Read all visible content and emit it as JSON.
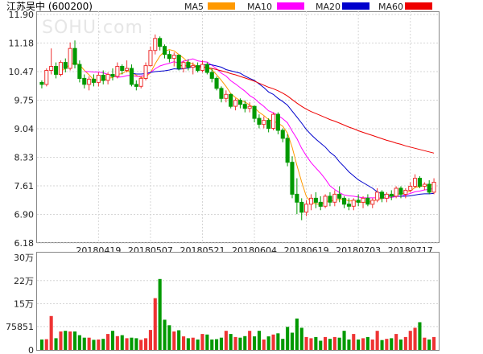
{
  "chart_data": [
    {
      "type": "candlestick",
      "title": "江苏吴中 (600200)",
      "watermark": "SOHU.com",
      "ylim": [
        6.18,
        11.9
      ],
      "y_ticks": [
        "11.90",
        "11.18",
        "10.47",
        "9.75",
        "9.04",
        "8.33",
        "7.61",
        "6.90",
        "6.18"
      ],
      "x_ticks": [
        {
          "label": "20180419",
          "index": 12
        },
        {
          "label": "20180507",
          "index": 23
        },
        {
          "label": "20180521",
          "index": 34
        },
        {
          "label": "20180604",
          "index": 45
        },
        {
          "label": "20180619",
          "index": 56
        },
        {
          "label": "20180703",
          "index": 67
        },
        {
          "label": "20180717",
          "index": 78
        }
      ],
      "legend": [
        {
          "name": "MA5",
          "color": "#ff9900"
        },
        {
          "name": "MA10",
          "color": "#ff00ff"
        },
        {
          "name": "MA20",
          "color": "#0000cc"
        },
        {
          "name": "MA60",
          "color": "#ee0000"
        }
      ],
      "colors": {
        "up": "#ee3333",
        "down": "#009900"
      },
      "ohlc": [
        [
          10.2,
          10.25,
          10.05,
          10.15
        ],
        [
          10.15,
          10.55,
          10.1,
          10.5
        ],
        [
          10.5,
          11.05,
          10.4,
          10.6
        ],
        [
          10.6,
          10.7,
          10.3,
          10.4
        ],
        [
          10.4,
          10.75,
          10.35,
          10.7
        ],
        [
          10.7,
          10.8,
          10.45,
          10.55
        ],
        [
          10.55,
          11.2,
          10.5,
          11.05
        ],
        [
          11.05,
          11.25,
          10.55,
          10.65
        ],
        [
          10.65,
          10.75,
          10.2,
          10.3
        ],
        [
          10.3,
          10.4,
          10.05,
          10.15
        ],
        [
          10.15,
          10.35,
          10.0,
          10.28
        ],
        [
          10.28,
          10.4,
          10.1,
          10.2
        ],
        [
          10.2,
          10.45,
          10.1,
          10.38
        ],
        [
          10.38,
          10.5,
          10.15,
          10.25
        ],
        [
          10.25,
          10.45,
          10.15,
          10.4
        ],
        [
          10.4,
          10.55,
          10.25,
          10.35
        ],
        [
          10.35,
          10.7,
          10.3,
          10.6
        ],
        [
          10.6,
          10.65,
          10.4,
          10.5
        ],
        [
          10.5,
          10.75,
          10.45,
          10.55
        ],
        [
          10.55,
          10.65,
          10.1,
          10.15
        ],
        [
          10.15,
          10.25,
          10.0,
          10.1
        ],
        [
          10.1,
          10.35,
          10.05,
          10.3
        ],
        [
          10.3,
          10.7,
          10.25,
          10.62
        ],
        [
          10.62,
          11.1,
          10.6,
          11.0
        ],
        [
          11.0,
          11.4,
          10.9,
          11.3
        ],
        [
          11.3,
          11.35,
          11.0,
          11.1
        ],
        [
          11.1,
          11.15,
          10.8,
          10.9
        ],
        [
          10.9,
          11.0,
          10.7,
          10.8
        ],
        [
          10.8,
          10.95,
          10.6,
          10.88
        ],
        [
          10.88,
          10.9,
          10.5,
          10.55
        ],
        [
          10.55,
          10.75,
          10.45,
          10.7
        ],
        [
          10.7,
          10.78,
          10.5,
          10.58
        ],
        [
          10.58,
          10.7,
          10.4,
          10.62
        ],
        [
          10.62,
          10.7,
          10.45,
          10.5
        ],
        [
          10.5,
          10.75,
          10.45,
          10.65
        ],
        [
          10.65,
          10.7,
          10.4,
          10.45
        ],
        [
          10.45,
          10.55,
          10.2,
          10.3
        ],
        [
          10.3,
          10.35,
          10.0,
          10.05
        ],
        [
          10.05,
          10.1,
          9.7,
          9.8
        ],
        [
          9.8,
          10.0,
          9.7,
          9.9
        ],
        [
          9.9,
          9.92,
          9.55,
          9.6
        ],
        [
          9.6,
          9.8,
          9.5,
          9.75
        ],
        [
          9.75,
          9.8,
          9.55,
          9.65
        ],
        [
          9.65,
          9.75,
          9.45,
          9.55
        ],
        [
          9.55,
          9.7,
          9.45,
          9.6
        ],
        [
          9.6,
          9.62,
          9.2,
          9.3
        ],
        [
          9.3,
          9.4,
          9.05,
          9.15
        ],
        [
          9.15,
          9.35,
          9.05,
          9.25
        ],
        [
          9.25,
          9.3,
          8.95,
          9.05
        ],
        [
          9.05,
          9.45,
          9.0,
          9.4
        ],
        [
          9.4,
          9.45,
          8.9,
          9.0
        ],
        [
          9.0,
          9.05,
          8.7,
          8.8
        ],
        [
          8.8,
          8.9,
          8.1,
          8.2
        ],
        [
          8.2,
          8.35,
          7.3,
          7.4
        ],
        [
          7.4,
          7.8,
          6.9,
          7.2
        ],
        [
          7.2,
          7.3,
          6.75,
          6.95
        ],
        [
          6.95,
          7.25,
          6.85,
          7.15
        ],
        [
          7.15,
          7.4,
          7.0,
          7.3
        ],
        [
          7.3,
          7.45,
          7.05,
          7.2
        ],
        [
          7.2,
          7.35,
          7.0,
          7.1
        ],
        [
          7.1,
          7.4,
          7.05,
          7.35
        ],
        [
          7.35,
          7.45,
          7.1,
          7.2
        ],
        [
          7.2,
          7.5,
          7.1,
          7.4
        ],
        [
          7.4,
          7.6,
          7.2,
          7.3
        ],
        [
          7.3,
          7.35,
          7.05,
          7.15
        ],
        [
          7.15,
          7.3,
          7.0,
          7.1
        ],
        [
          7.1,
          7.3,
          7.0,
          7.25
        ],
        [
          7.25,
          7.4,
          7.1,
          7.2
        ],
        [
          7.2,
          7.35,
          7.05,
          7.3
        ],
        [
          7.3,
          7.4,
          7.1,
          7.15
        ],
        [
          7.15,
          7.3,
          7.05,
          7.25
        ],
        [
          7.25,
          7.55,
          7.2,
          7.45
        ],
        [
          7.45,
          7.5,
          7.2,
          7.3
        ],
        [
          7.3,
          7.45,
          7.2,
          7.4
        ],
        [
          7.4,
          7.5,
          7.25,
          7.35
        ],
        [
          7.35,
          7.6,
          7.3,
          7.55
        ],
        [
          7.55,
          7.6,
          7.3,
          7.4
        ],
        [
          7.4,
          7.55,
          7.3,
          7.5
        ],
        [
          7.5,
          7.7,
          7.45,
          7.6
        ],
        [
          7.6,
          7.9,
          7.55,
          7.8
        ],
        [
          7.8,
          7.85,
          7.55,
          7.6
        ],
        [
          7.6,
          7.7,
          7.5,
          7.65
        ],
        [
          7.65,
          7.75,
          7.4,
          7.45
        ],
        [
          7.45,
          7.8,
          7.4,
          7.7
        ]
      ],
      "ma_lines": {
        "MA5": [
          null,
          null,
          null,
          null,
          10.47,
          10.55,
          10.66,
          10.69,
          10.64,
          10.5,
          10.39,
          10.26,
          10.26,
          10.25,
          10.3,
          10.32,
          10.4,
          10.42,
          10.49,
          10.45,
          10.38,
          10.32,
          10.34,
          10.44,
          10.67,
          10.86,
          10.98,
          11.02,
          10.99,
          10.9,
          10.81,
          10.7,
          10.66,
          10.59,
          10.61,
          10.56,
          10.52,
          10.39,
          10.25,
          10.1,
          9.92,
          9.82,
          9.74,
          9.71,
          9.63,
          9.57,
          9.45,
          9.37,
          9.27,
          9.23,
          9.18,
          9.1,
          8.93,
          8.57,
          8.12,
          7.71,
          7.34,
          7.2,
          7.16,
          7.14,
          7.22,
          7.23,
          7.25,
          7.27,
          7.28,
          7.23,
          7.24,
          7.2,
          7.2,
          7.2,
          7.22,
          7.27,
          7.29,
          7.33,
          7.35,
          7.41,
          7.4,
          7.44,
          7.48,
          7.57,
          7.59,
          7.62,
          7.63,
          7.64
        ],
        "MA10": [
          null,
          null,
          null,
          null,
          null,
          null,
          null,
          null,
          null,
          10.47,
          10.47,
          10.46,
          10.46,
          10.44,
          10.4,
          10.36,
          10.33,
          10.34,
          10.37,
          10.38,
          10.35,
          10.36,
          10.38,
          10.45,
          10.54,
          10.61,
          10.65,
          10.68,
          10.72,
          10.68,
          10.73,
          10.76,
          10.79,
          10.74,
          10.72,
          10.71,
          10.63,
          10.54,
          10.43,
          10.36,
          10.24,
          10.16,
          10.07,
          9.98,
          9.87,
          9.8,
          9.69,
          9.6,
          9.49,
          9.44,
          9.37,
          9.29,
          9.19,
          8.98,
          8.79,
          8.55,
          8.36,
          8.19,
          8.06,
          7.93,
          7.78,
          7.61,
          7.52,
          7.44,
          7.38,
          7.36,
          7.35,
          7.33,
          7.31,
          7.31,
          7.31,
          7.31,
          7.3,
          7.3,
          7.32,
          7.34,
          7.35,
          7.38,
          7.42,
          7.46,
          7.48,
          7.51,
          7.52,
          7.55
        ],
        "MA20": [
          null,
          null,
          null,
          null,
          null,
          null,
          null,
          null,
          null,
          null,
          null,
          null,
          null,
          null,
          null,
          null,
          null,
          null,
          null,
          10.43,
          10.41,
          10.41,
          10.42,
          10.45,
          10.47,
          10.48,
          10.49,
          10.51,
          10.54,
          10.53,
          10.54,
          10.56,
          10.59,
          10.6,
          10.63,
          10.65,
          10.64,
          10.61,
          10.58,
          10.52,
          10.49,
          10.46,
          10.43,
          10.36,
          10.3,
          10.25,
          10.16,
          10.07,
          9.96,
          9.9,
          9.8,
          9.72,
          9.63,
          9.48,
          9.33,
          9.18,
          9.02,
          8.89,
          8.78,
          8.68,
          8.58,
          8.45,
          8.36,
          8.21,
          8.09,
          7.96,
          7.86,
          7.76,
          7.69,
          7.62,
          7.55,
          7.46,
          7.41,
          7.37,
          7.35,
          7.35,
          7.35,
          7.35,
          7.36,
          7.38,
          7.4,
          7.41,
          7.41,
          7.42
        ],
        "MA60": [
          null,
          null,
          null,
          null,
          null,
          null,
          null,
          null,
          null,
          null,
          null,
          null,
          null,
          null,
          null,
          null,
          null,
          null,
          null,
          null,
          null,
          null,
          null,
          null,
          null,
          null,
          null,
          null,
          null,
          10.62,
          10.62,
          10.61,
          10.6,
          10.59,
          10.58,
          10.57,
          10.55,
          10.52,
          10.49,
          10.46,
          10.42,
          10.39,
          10.35,
          10.31,
          10.27,
          10.23,
          10.18,
          10.13,
          10.08,
          10.04,
          9.99,
          9.93,
          9.86,
          9.77,
          9.68,
          9.6,
          9.53,
          9.47,
          9.42,
          9.37,
          9.32,
          9.27,
          9.23,
          9.18,
          9.13,
          9.08,
          9.04,
          8.99,
          8.95,
          8.91,
          8.87,
          8.83,
          8.79,
          8.75,
          8.72,
          8.68,
          8.65,
          8.61,
          8.58,
          8.55,
          8.52,
          8.49,
          8.46,
          8.43
        ]
      }
    },
    {
      "type": "bar",
      "title": "volume",
      "y_ticks": [
        "30万",
        "22万",
        "15万",
        "75851",
        "0"
      ],
      "ylim": [
        0,
        300000
      ],
      "volume": [
        34000,
        35000,
        110000,
        38000,
        60000,
        62000,
        60000,
        60000,
        48000,
        40000,
        40000,
        33000,
        34000,
        36000,
        52000,
        62000,
        45000,
        48000,
        38000,
        40000,
        38000,
        33000,
        38000,
        65000,
        168000,
        230000,
        98000,
        80000,
        60000,
        64000,
        44000,
        38000,
        40000,
        34000,
        52000,
        50000,
        34000,
        35000,
        40000,
        62000,
        52000,
        42000,
        40000,
        45000,
        62000,
        44000,
        62000,
        34000,
        44000,
        50000,
        54000,
        36000,
        75000,
        56000,
        102000,
        72000,
        42000,
        38000,
        42000,
        30000,
        42000,
        36000,
        42000,
        40000,
        62000,
        34000,
        52000,
        34000,
        38000,
        42000,
        34000,
        62000,
        32000,
        36000,
        38000,
        52000,
        34000,
        42000,
        62000,
        72000,
        90000,
        40000,
        34000,
        42000
      ]
    }
  ]
}
